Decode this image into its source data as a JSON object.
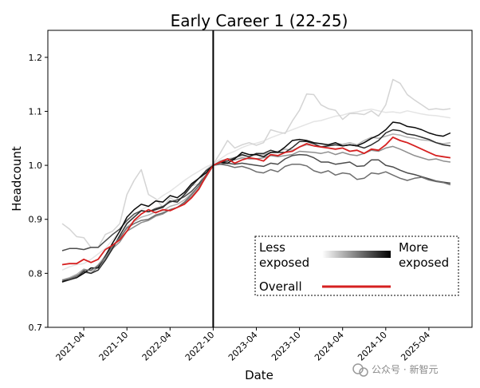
{
  "chart_data": {
    "type": "line",
    "title": "Early Career 1 (22-25)",
    "xlabel": "Date",
    "ylabel": "Headcount",
    "ylim": [
      0.7,
      1.25
    ],
    "y_ticks": [
      "0.7",
      "0.8",
      "0.9",
      "1.0",
      "1.1",
      "1.2"
    ],
    "x_ticks": [
      "2021-04",
      "2021-10",
      "2022-04",
      "2022-10",
      "2023-04",
      "2023-10",
      "2024-04",
      "2024-10",
      "2025-04"
    ],
    "x_range": [
      "2020-11",
      "2025-10"
    ],
    "reference_line": "2022-10",
    "grid": false,
    "legend": {
      "placement": "lower-right",
      "less_label": "Less exposed",
      "more_label": "More exposed",
      "overall_label": "Overall",
      "gradient_from": "#ffffff",
      "gradient_to": "#000000",
      "overall_color": "#d62020"
    },
    "x": [
      "2021-01",
      "2021-02",
      "2021-03",
      "2021-04",
      "2021-05",
      "2021-06",
      "2021-07",
      "2021-08",
      "2021-09",
      "2021-10",
      "2021-11",
      "2021-12",
      "2022-01",
      "2022-02",
      "2022-03",
      "2022-04",
      "2022-05",
      "2022-06",
      "2022-07",
      "2022-08",
      "2022-09",
      "2022-10",
      "2022-11",
      "2022-12",
      "2023-01",
      "2023-02",
      "2023-03",
      "2023-04",
      "2023-05",
      "2023-06",
      "2023-07",
      "2023-08",
      "2023-09",
      "2023-10",
      "2023-11",
      "2023-12",
      "2024-01",
      "2024-02",
      "2024-03",
      "2024-04",
      "2024-05",
      "2024-06",
      "2024-07",
      "2024-08",
      "2024-09",
      "2024-10",
      "2024-11",
      "2024-12",
      "2025-01",
      "2025-02",
      "2025-03",
      "2025-04",
      "2025-05",
      "2025-06",
      "2025-07"
    ],
    "series": [
      {
        "color": "#e4e4e4",
        "values": [
          0.806,
          0.812,
          0.816,
          0.818,
          0.826,
          0.836,
          0.846,
          0.862,
          0.878,
          0.894,
          0.907,
          0.918,
          0.924,
          0.934,
          0.944,
          0.952,
          0.962,
          0.972,
          0.981,
          0.989,
          0.997,
          1.003,
          1.012,
          1.021,
          1.026,
          1.033,
          1.038,
          1.041,
          1.045,
          1.051,
          1.056,
          1.061,
          1.066,
          1.071,
          1.076,
          1.081,
          1.083,
          1.087,
          1.091,
          1.093,
          1.097,
          1.099,
          1.102,
          1.104,
          1.101,
          1.098,
          1.099,
          1.097,
          1.101,
          1.098,
          1.095,
          1.093,
          1.092,
          1.09,
          1.088
        ]
      },
      {
        "color": "#d4d4d4",
        "values": [
          0.892,
          0.882,
          0.868,
          0.866,
          0.848,
          0.848,
          0.872,
          0.878,
          0.892,
          0.946,
          0.972,
          0.992,
          0.946,
          0.938,
          0.922,
          0.94,
          0.932,
          0.944,
          0.962,
          0.966,
          0.992,
          1.002,
          1.023,
          1.046,
          1.032,
          1.038,
          1.042,
          1.037,
          1.042,
          1.066,
          1.062,
          1.059,
          1.082,
          1.102,
          1.132,
          1.131,
          1.112,
          1.105,
          1.102,
          1.085,
          1.096,
          1.096,
          1.094,
          1.101,
          1.091,
          1.112,
          1.159,
          1.152,
          1.131,
          1.121,
          1.112,
          1.103,
          1.105,
          1.103,
          1.105
        ]
      },
      {
        "color": "#b2b2b2",
        "values": [
          0.788,
          0.792,
          0.798,
          0.808,
          0.804,
          0.816,
          0.832,
          0.852,
          0.864,
          0.886,
          0.896,
          0.904,
          0.908,
          0.914,
          0.916,
          0.924,
          0.928,
          0.936,
          0.948,
          0.962,
          0.98,
          1.0,
          1.006,
          1.012,
          1.014,
          1.018,
          1.016,
          1.02,
          1.02,
          1.024,
          1.026,
          1.03,
          1.028,
          1.034,
          1.038,
          1.036,
          1.035,
          1.036,
          1.041,
          1.039,
          1.042,
          1.038,
          1.046,
          1.052,
          1.05,
          1.054,
          1.058,
          1.056,
          1.052,
          1.05,
          1.047,
          1.046,
          1.042,
          1.04,
          1.042
        ]
      },
      {
        "color": "#8e8e8e",
        "values": [
          0.786,
          0.79,
          0.796,
          0.802,
          0.8,
          0.812,
          0.826,
          0.846,
          0.858,
          0.878,
          0.886,
          0.894,
          0.898,
          0.906,
          0.91,
          0.918,
          0.922,
          0.93,
          0.942,
          0.958,
          0.978,
          1.0,
          1.008,
          1.012,
          1.01,
          1.014,
          1.012,
          1.012,
          1.014,
          1.018,
          1.016,
          1.018,
          1.02,
          1.026,
          1.025,
          1.024,
          1.022,
          1.025,
          1.02,
          1.024,
          1.02,
          1.018,
          1.022,
          1.028,
          1.026,
          1.032,
          1.035,
          1.03,
          1.024,
          1.018,
          1.014,
          1.01,
          1.012,
          1.008,
          1.006
        ]
      },
      {
        "color": "#4c4c4c",
        "values": [
          0.842,
          0.846,
          0.846,
          0.844,
          0.848,
          0.848,
          0.86,
          0.872,
          0.882,
          0.898,
          0.91,
          0.916,
          0.914,
          0.92,
          0.924,
          0.932,
          0.936,
          0.942,
          0.952,
          0.966,
          0.982,
          1.0,
          1.003,
          1.004,
          1.002,
          1.004,
          1.002,
          1.0,
          0.998,
          1.004,
          1.002,
          1.012,
          1.018,
          1.02,
          1.019,
          1.014,
          1.006,
          1.006,
          1.002,
          1.004,
          1.006,
          0.998,
          0.999,
          1.01,
          1.01,
          1.0,
          0.997,
          0.991,
          0.986,
          0.983,
          0.979,
          0.975,
          0.971,
          0.969,
          0.967
        ]
      },
      {
        "color": "#2c2c2c",
        "values": [
          0.784,
          0.788,
          0.792,
          0.804,
          0.8,
          0.806,
          0.824,
          0.846,
          0.87,
          0.892,
          0.904,
          0.916,
          0.914,
          0.918,
          0.922,
          0.934,
          0.932,
          0.946,
          0.962,
          0.976,
          0.99,
          1.0,
          1.006,
          1.008,
          1.014,
          1.02,
          1.016,
          1.022,
          1.022,
          1.028,
          1.024,
          1.024,
          1.033,
          1.044,
          1.044,
          1.04,
          1.034,
          1.036,
          1.038,
          1.036,
          1.038,
          1.036,
          1.032,
          1.038,
          1.046,
          1.06,
          1.066,
          1.064,
          1.058,
          1.056,
          1.052,
          1.048,
          1.042,
          1.038,
          1.036
        ]
      },
      {
        "color": "#0a0a0a",
        "values": [
          0.784,
          0.79,
          0.792,
          0.8,
          0.81,
          0.81,
          0.832,
          0.856,
          0.878,
          0.904,
          0.918,
          0.928,
          0.924,
          0.934,
          0.932,
          0.944,
          0.94,
          0.95,
          0.966,
          0.976,
          0.986,
          1.0,
          1.006,
          1.004,
          1.012,
          1.024,
          1.02,
          1.02,
          1.016,
          1.024,
          1.024,
          1.034,
          1.046,
          1.048,
          1.046,
          1.042,
          1.04,
          1.038,
          1.042,
          1.036,
          1.038,
          1.036,
          1.042,
          1.05,
          1.056,
          1.066,
          1.08,
          1.078,
          1.072,
          1.07,
          1.066,
          1.06,
          1.056,
          1.054,
          1.06
        ]
      },
      {
        "color": "#6e6e6e",
        "values": [
          0.787,
          0.79,
          0.794,
          0.806,
          0.806,
          0.814,
          0.83,
          0.85,
          0.866,
          0.884,
          0.892,
          0.898,
          0.9,
          0.908,
          0.912,
          0.918,
          0.922,
          0.932,
          0.946,
          0.962,
          0.982,
          1.0,
          1.002,
          1.0,
          0.996,
          0.998,
          0.994,
          0.988,
          0.986,
          0.992,
          0.988,
          0.998,
          1.002,
          1.002,
          0.999,
          0.99,
          0.986,
          0.99,
          0.982,
          0.986,
          0.984,
          0.974,
          0.976,
          0.986,
          0.984,
          0.988,
          0.982,
          0.976,
          0.972,
          0.976,
          0.978,
          0.973,
          0.97,
          0.968,
          0.964
        ]
      },
      {
        "color": "#d62020",
        "values": [
          0.816,
          0.818,
          0.818,
          0.826,
          0.82,
          0.826,
          0.844,
          0.852,
          0.862,
          0.878,
          0.898,
          0.91,
          0.918,
          0.912,
          0.918,
          0.916,
          0.922,
          0.928,
          0.94,
          0.956,
          0.98,
          1.0,
          1.006,
          1.012,
          1.004,
          1.01,
          1.014,
          1.012,
          1.008,
          1.02,
          1.018,
          1.024,
          1.026,
          1.034,
          1.04,
          1.036,
          1.034,
          1.032,
          1.03,
          1.032,
          1.026,
          1.028,
          1.022,
          1.03,
          1.028,
          1.038,
          1.052,
          1.046,
          1.042,
          1.036,
          1.03,
          1.024,
          1.018,
          1.016,
          1.014
        ]
      }
    ]
  },
  "watermark": {
    "text": "公众号 · 新智元"
  }
}
